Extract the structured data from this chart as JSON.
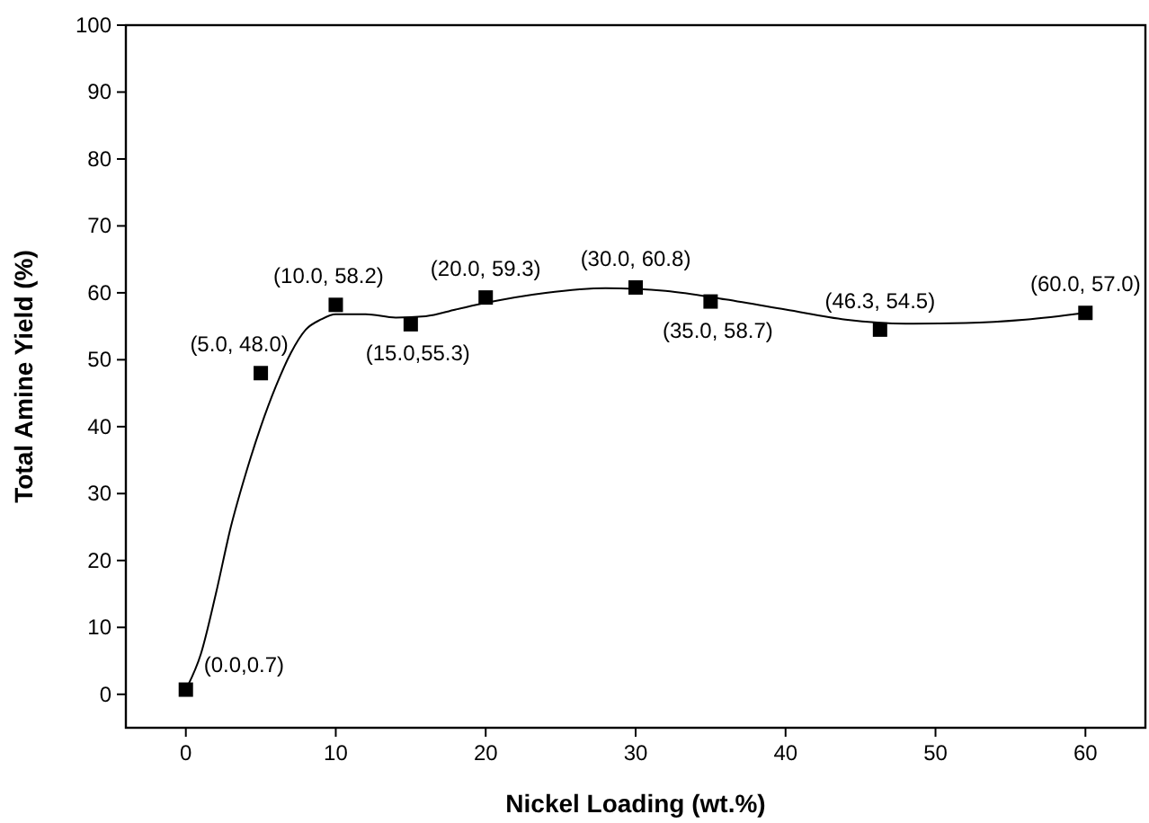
{
  "chart_data": {
    "type": "scatter",
    "xlabel": "Nickel Loading (wt.%)",
    "ylabel": "Total Amine Yield (%)",
    "xlim": [
      -4,
      64
    ],
    "xticks": [
      0,
      10,
      20,
      30,
      40,
      50,
      60
    ],
    "ylim": [
      -5,
      100
    ],
    "yticks": [
      0,
      10,
      20,
      30,
      40,
      50,
      60,
      70,
      80,
      90,
      100
    ],
    "x": [
      0,
      5,
      10,
      15,
      20,
      30,
      35,
      46.3,
      60
    ],
    "series": [
      {
        "color": "#000000",
        "marker": "square",
        "values": [
          0.7,
          48.0,
          58.2,
          55.3,
          59.3,
          60.8,
          58.7,
          54.5,
          57.0
        ]
      },
      {
        "type": "line",
        "color": "#000000",
        "marker": "none",
        "x": [
          0,
          1,
          2,
          3,
          4,
          5,
          6,
          7,
          8,
          9,
          10,
          12,
          14,
          16,
          18,
          20,
          24,
          28,
          30,
          32,
          36,
          40,
          44,
          48,
          52,
          56,
          60
        ],
        "values": [
          0.7,
          6,
          15,
          25,
          33,
          40,
          46,
          51,
          54.5,
          56,
          56.8,
          56.8,
          56.3,
          56.5,
          57.5,
          58.5,
          60,
          60.7,
          60.6,
          60.3,
          59,
          57.5,
          56,
          55.4,
          55.5,
          56,
          57.0
        ]
      }
    ],
    "annotations": [
      {
        "text": "(0.0,0.7)",
        "x": 0,
        "y": 0.7
      },
      {
        "text": "(5.0, 48.0)",
        "x": 5,
        "y": 48.0
      },
      {
        "text": "(10.0, 58.2)",
        "x": 10,
        "y": 58.2
      },
      {
        "text": "(15.0,55.3)",
        "x": 15,
        "y": 55.3
      },
      {
        "text": "(20.0, 59.3)",
        "x": 20,
        "y": 59.3
      },
      {
        "text": "(30.0, 60.8)",
        "x": 30,
        "y": 60.8
      },
      {
        "text": "(35.0, 58.7)",
        "x": 35,
        "y": 58.7
      },
      {
        "text": "(46.3, 54.5)",
        "x": 46.3,
        "y": 54.5
      },
      {
        "text": "(60.0, 57.0)",
        "x": 60,
        "y": 57.0
      }
    ]
  }
}
